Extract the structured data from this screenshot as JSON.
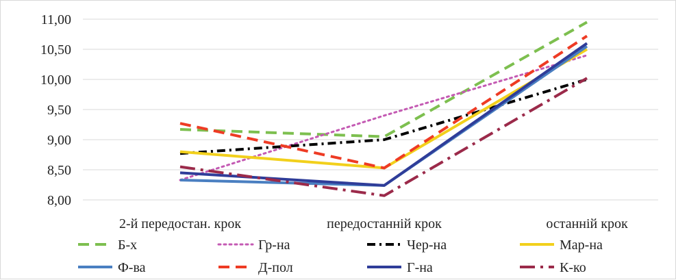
{
  "chart_data": {
    "type": "line",
    "categories": [
      "2-й передостан. крок",
      "передостанній крок",
      "останній крок"
    ],
    "yticks": [
      "8,00",
      "8,50",
      "9,00",
      "9,50",
      "10,00",
      "10,50",
      "11,00"
    ],
    "ylim": [
      8.0,
      11.0
    ],
    "grid": true,
    "legend_position": "bottom",
    "series": [
      {
        "name": "Б-х",
        "values": [
          9.17,
          9.05,
          10.95
        ],
        "color": "#7dbf4f",
        "dash": "dash"
      },
      {
        "name": "Гр-на",
        "values": [
          8.33,
          9.4,
          10.4
        ],
        "color": "#c45ab3",
        "dash": "dot"
      },
      {
        "name": "Чер-на",
        "values": [
          8.77,
          9.0,
          10.0
        ],
        "color": "#000000",
        "dash": "dashdot"
      },
      {
        "name": "Мар-на",
        "values": [
          8.8,
          8.53,
          10.5
        ],
        "color": "#f2d01c",
        "dash": "solid"
      },
      {
        "name": "Ф-ва",
        "values": [
          8.33,
          8.24,
          10.55
        ],
        "color": "#4a7fc1",
        "dash": "solid"
      },
      {
        "name": "Д-пол",
        "values": [
          9.27,
          8.53,
          10.72
        ],
        "color": "#ee3b24",
        "dash": "dash"
      },
      {
        "name": "Г-на",
        "values": [
          8.45,
          8.24,
          10.6
        ],
        "color": "#2f3d99",
        "dash": "solid"
      },
      {
        "name": "К-ко",
        "values": [
          8.55,
          8.07,
          10.02
        ],
        "color": "#9b2a4a",
        "dash": "longdashdot"
      }
    ]
  }
}
